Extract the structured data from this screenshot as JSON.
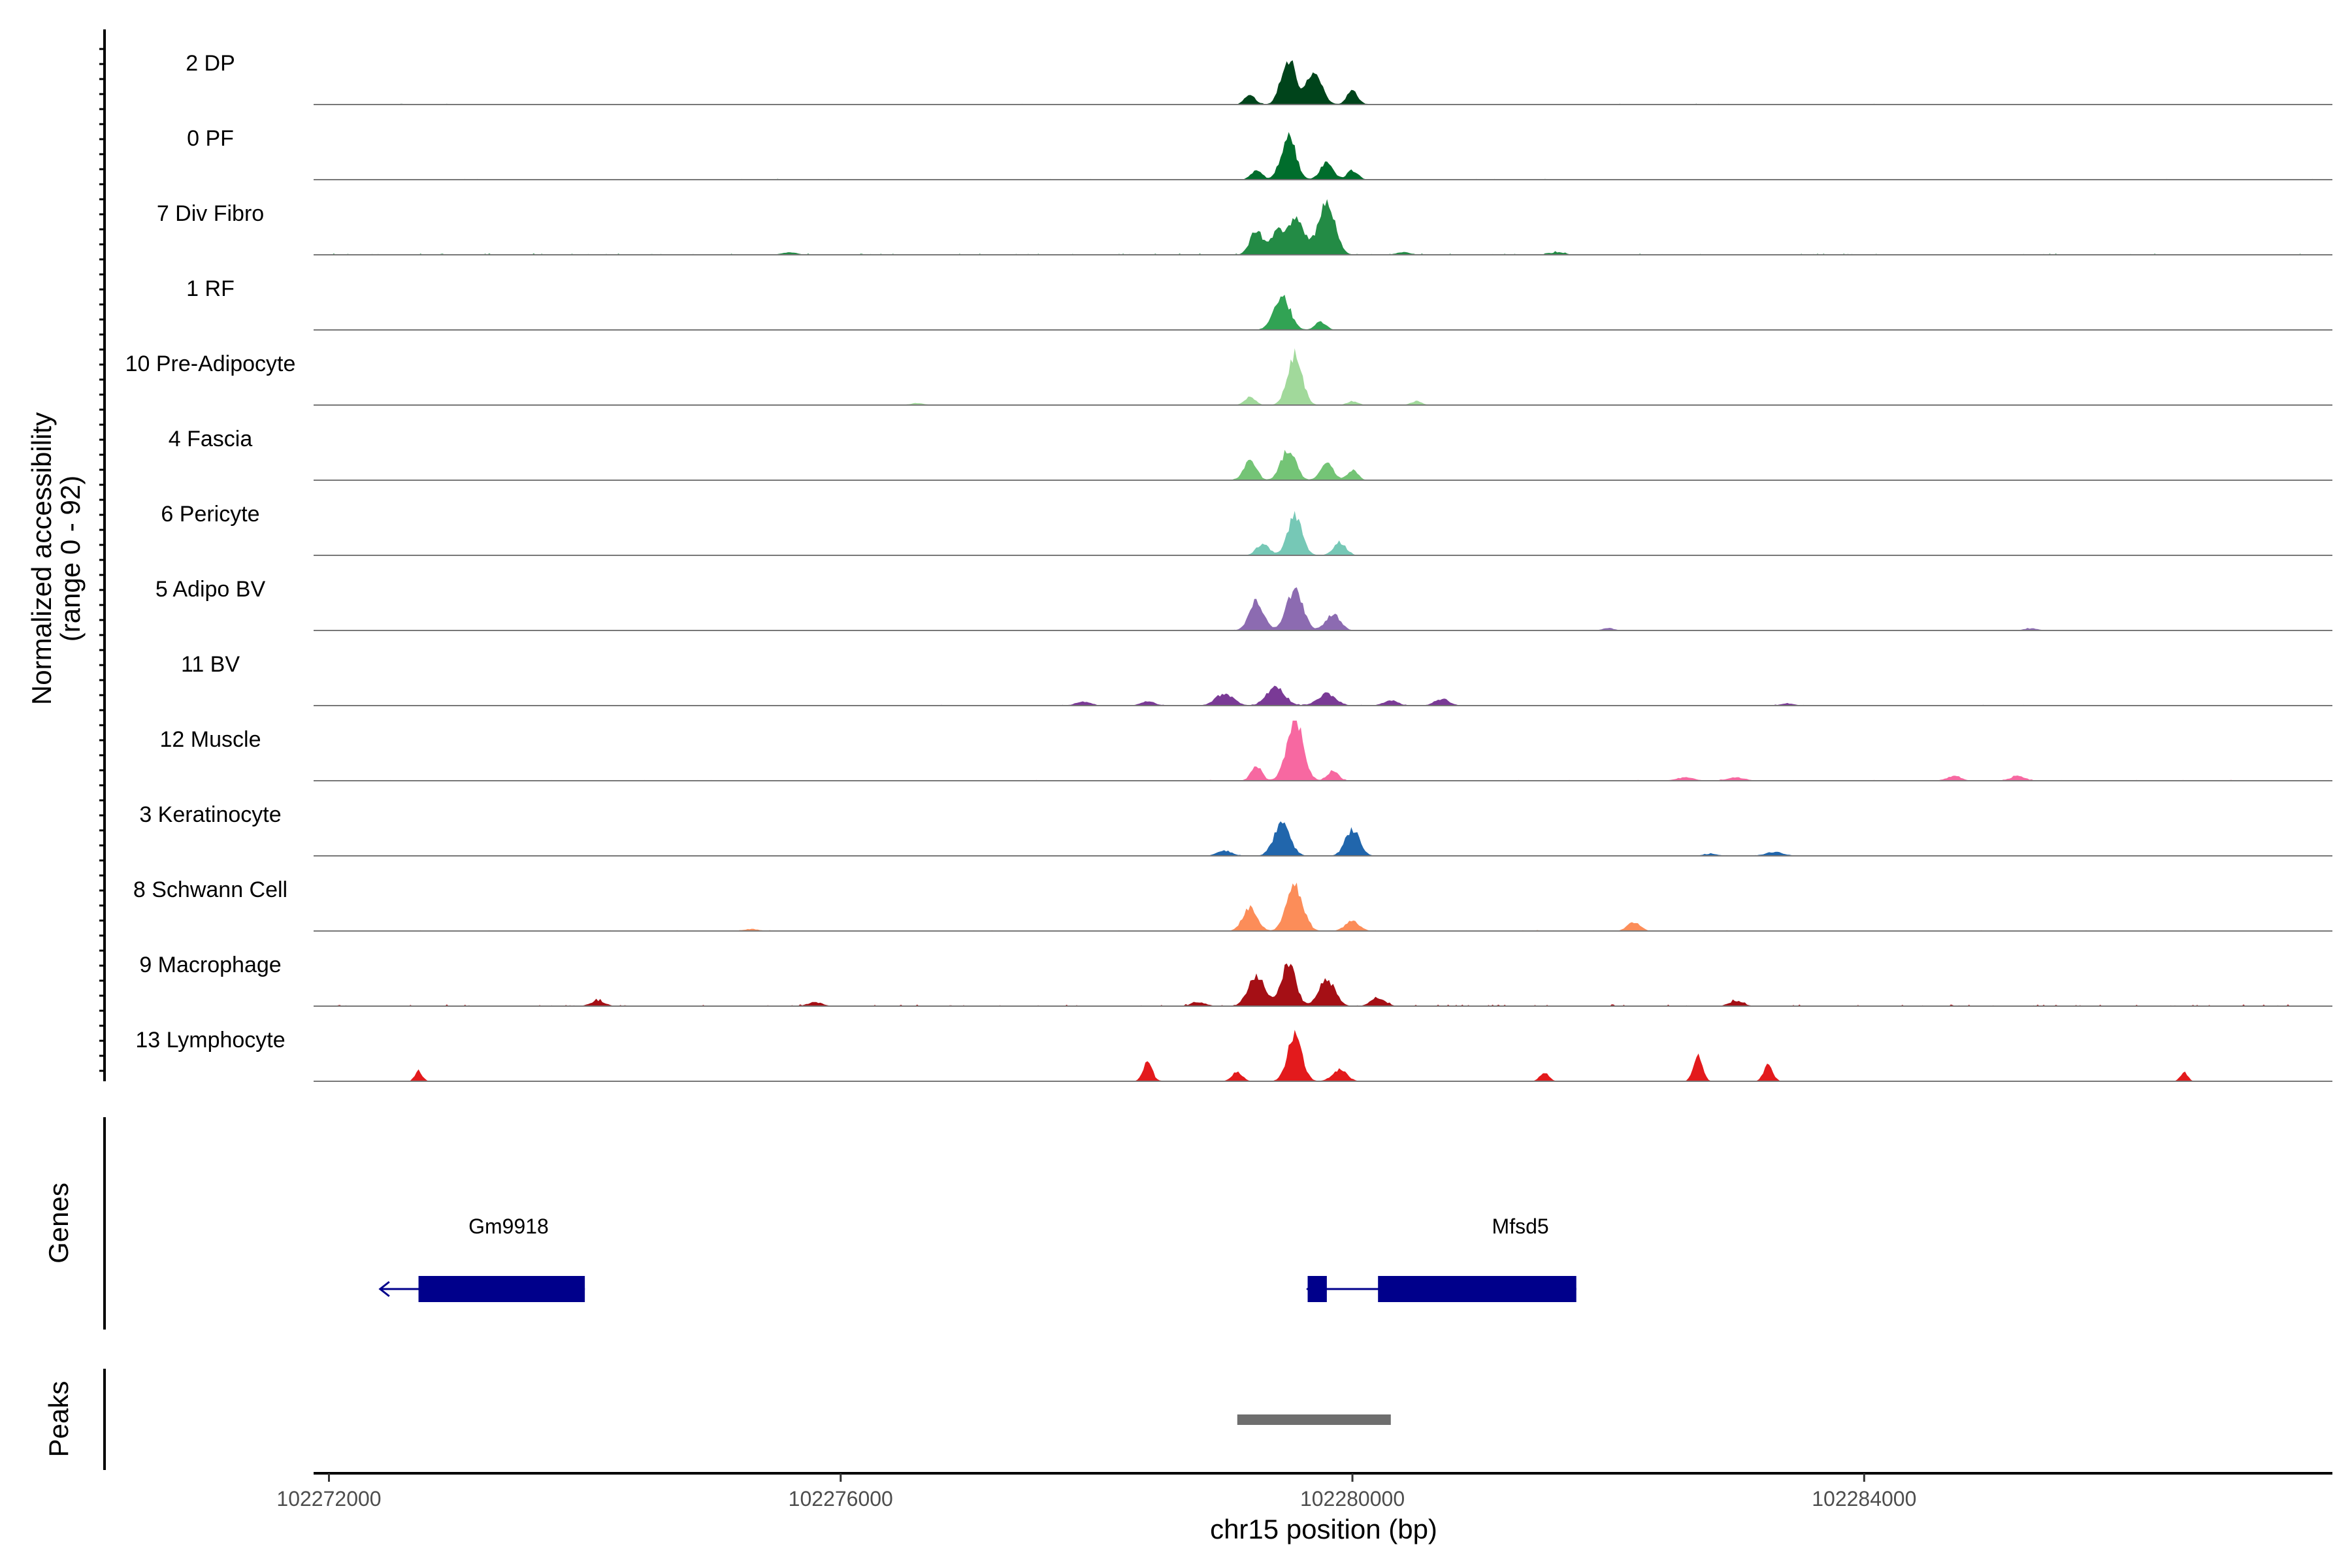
{
  "chart_data": {
    "type": "area",
    "xlabel": "chr15 position (bp)",
    "ylabel": [
      "Normalized accessibility",
      "(range 0 - 92)"
    ],
    "ylim": [
      0,
      92
    ],
    "xlim": [
      102271880,
      102287660
    ],
    "x_ticks": [
      102272000,
      102276000,
      102280000,
      102284000
    ],
    "x_tick_labels": [
      "102272000",
      "102276000",
      "102280000",
      "102284000"
    ],
    "tracks": [
      {
        "name": "2 DP",
        "color": "#00441b",
        "peaks": [
          [
            102279200,
            14,
            60
          ],
          [
            102279500,
            70,
            80
          ],
          [
            102279700,
            45,
            90
          ],
          [
            102280000,
            20,
            60
          ]
        ],
        "noise": 0.9,
        "extra": []
      },
      {
        "name": "0 PF",
        "color": "#006d2c",
        "peaks": [
          [
            102279250,
            15,
            60
          ],
          [
            102279500,
            68,
            80
          ],
          [
            102279800,
            28,
            70
          ],
          [
            102280000,
            14,
            60
          ]
        ],
        "noise": 0.9,
        "extra": []
      },
      {
        "name": "7 Div Fibro",
        "color": "#238b45",
        "peaks": [
          [
            102279250,
            38,
            70
          ],
          [
            102279550,
            55,
            100
          ],
          [
            102279800,
            82,
            90
          ],
          [
            102279400,
            30,
            60
          ]
        ],
        "noise": 1.6,
        "extra": [
          [
            102275600,
            4,
            80
          ],
          [
            102281600,
            4,
            80
          ],
          [
            102280400,
            4,
            80
          ]
        ]
      },
      {
        "name": "1 RF",
        "color": "#31a354",
        "peaks": [
          [
            102279450,
            50,
            90
          ],
          [
            102279750,
            12,
            60
          ]
        ],
        "noise": 0.7,
        "extra": []
      },
      {
        "name": "10 Pre-Adipocyte",
        "color": "#a1d99b",
        "peaks": [
          [
            102279200,
            12,
            60
          ],
          [
            102279550,
            78,
            80
          ],
          [
            102280000,
            6,
            60
          ],
          [
            102280500,
            6,
            60
          ]
        ],
        "noise": 0.5,
        "extra": [
          [
            102276600,
            3,
            80
          ]
        ]
      },
      {
        "name": "4 Fascia",
        "color": "#74c476",
        "peaks": [
          [
            102279200,
            30,
            70
          ],
          [
            102279500,
            48,
            80
          ],
          [
            102279800,
            26,
            70
          ],
          [
            102280000,
            15,
            60
          ]
        ],
        "noise": 0.6,
        "extra": []
      },
      {
        "name": "6 Pericyte",
        "color": "#76c8b6",
        "peaks": [
          [
            102279300,
            18,
            70
          ],
          [
            102279550,
            60,
            80
          ],
          [
            102279900,
            20,
            70
          ]
        ],
        "noise": 0.6,
        "extra": []
      },
      {
        "name": "5 Adipo BV",
        "color": "#8c6bb1",
        "peaks": [
          [
            102279250,
            45,
            80
          ],
          [
            102279550,
            62,
            90
          ],
          [
            102279850,
            25,
            80
          ]
        ],
        "noise": 0.6,
        "extra": [
          [
            102282000,
            4,
            60
          ],
          [
            102285300,
            3,
            80
          ]
        ]
      },
      {
        "name": "11 BV",
        "color": "#7a3a96",
        "peaks": [
          [
            102279000,
            18,
            100
          ],
          [
            102279400,
            28,
            100
          ],
          [
            102279800,
            18,
            100
          ],
          [
            102280300,
            8,
            80
          ],
          [
            102280700,
            10,
            80
          ]
        ],
        "noise": 1.0,
        "extra": [
          [
            102277900,
            6,
            80
          ],
          [
            102278400,
            6,
            80
          ],
          [
            102283400,
            3,
            80
          ]
        ]
      },
      {
        "name": "12 Muscle",
        "color": "#f768a1",
        "peaks": [
          [
            102279250,
            22,
            60
          ],
          [
            102279550,
            92,
            90
          ],
          [
            102279850,
            15,
            60
          ]
        ],
        "noise": 1.0,
        "extra": [
          [
            102282600,
            5,
            100
          ],
          [
            102283000,
            5,
            100
          ],
          [
            102284700,
            7,
            80
          ],
          [
            102285200,
            7,
            80
          ]
        ]
      },
      {
        "name": "3 Keratinocyte",
        "color": "#2166ac",
        "peaks": [
          [
            102279000,
            8,
            80
          ],
          [
            102279450,
            48,
            90
          ],
          [
            102280000,
            40,
            80
          ]
        ],
        "noise": 0.8,
        "extra": [
          [
            102283300,
            6,
            100
          ],
          [
            102282800,
            3,
            80
          ]
        ]
      },
      {
        "name": "8 Schwann Cell",
        "color": "#fc8d59",
        "peaks": [
          [
            102279200,
            35,
            80
          ],
          [
            102279550,
            68,
            90
          ],
          [
            102280000,
            15,
            80
          ]
        ],
        "noise": 1.1,
        "extra": [
          [
            102282200,
            14,
            70
          ],
          [
            102275300,
            3,
            80
          ]
        ]
      },
      {
        "name": "9 Macrophage",
        "color": "#a50f15",
        "peaks": [
          [
            102279250,
            48,
            90
          ],
          [
            102279500,
            65,
            80
          ],
          [
            102279800,
            40,
            90
          ],
          [
            102280200,
            12,
            80
          ]
        ],
        "noise": 2.2,
        "extra": [
          [
            102274100,
            8,
            80
          ],
          [
            102275800,
            6,
            80
          ],
          [
            102278800,
            6,
            80
          ],
          [
            102283000,
            8,
            80
          ]
        ]
      },
      {
        "name": "13 Lymphocyte",
        "color": "#e31a1c",
        "peaks": [
          [
            102279100,
            14,
            60
          ],
          [
            102279550,
            70,
            80
          ],
          [
            102279900,
            18,
            80
          ]
        ],
        "noise": 0.6,
        "extra": [
          [
            102272700,
            16,
            40
          ],
          [
            102278400,
            30,
            50
          ],
          [
            102281500,
            14,
            50
          ],
          [
            102282700,
            40,
            50
          ],
          [
            102283250,
            25,
            50
          ],
          [
            102286500,
            14,
            40
          ]
        ]
      }
    ],
    "genes_label": "Genes",
    "genes": [
      {
        "name": "Gm9918",
        "strand": "-",
        "start": 102272400,
        "end": 102274000,
        "exons": [
          [
            102272700,
            102274000
          ]
        ]
      },
      {
        "name": "Mfsd5",
        "strand": "-",
        "start": 102279650,
        "end": 102281750,
        "exons": [
          [
            102279650,
            102279800
          ],
          [
            102280200,
            102281750
          ]
        ]
      }
    ],
    "peaks_label": "Peaks",
    "peak_regions": [
      [
        102279100,
        102280300
      ]
    ],
    "grid": false,
    "legend": "none"
  }
}
